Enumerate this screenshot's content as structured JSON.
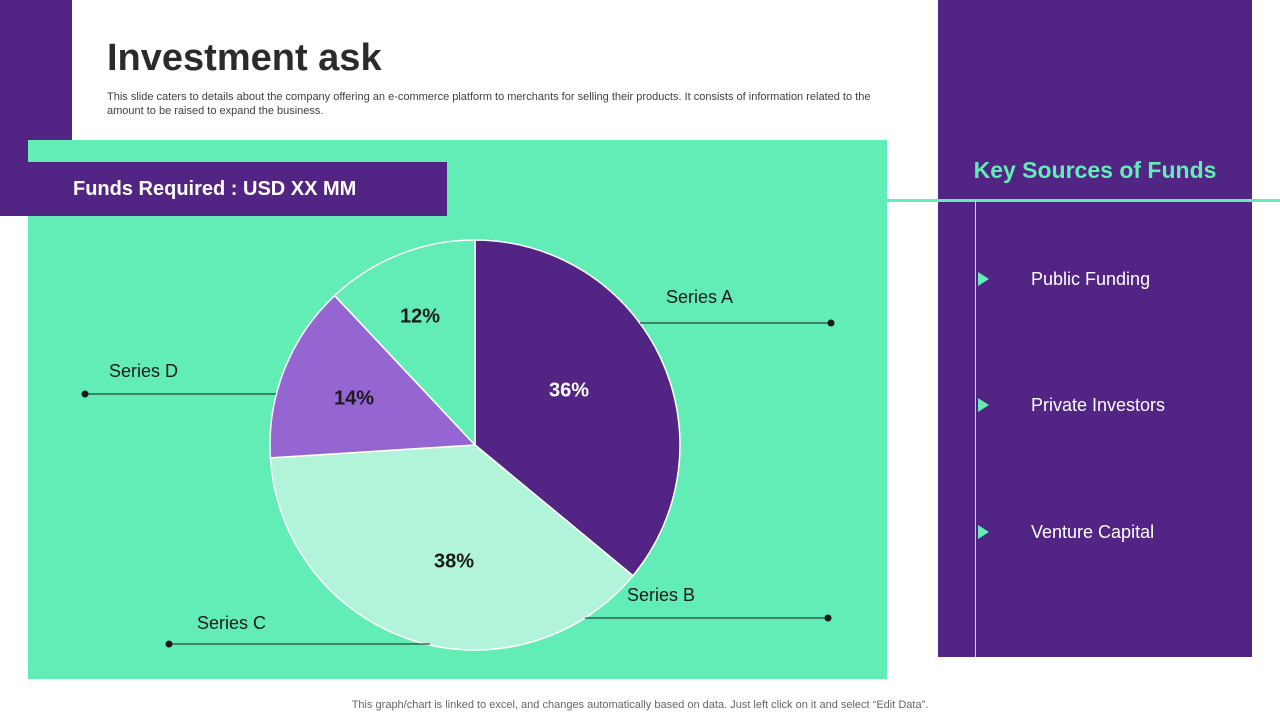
{
  "page": {
    "title": "Investment ask",
    "description": "This slide caters to details about the company offering an e-commerce platform to merchants for selling their products. It consists of information related to the amount to be raised to expand the business.",
    "footer_note": "This graph/chart is linked to excel, and changes automatically based on data. Just left click on it and select “Edit Data”."
  },
  "funds_banner": {
    "label": "Funds Required : USD XX MM"
  },
  "key_sources": {
    "title": "Key Sources of Funds",
    "items": [
      {
        "label": "Public Funding",
        "icon": "triangle-arrow-icon"
      },
      {
        "label": "Private Investors",
        "icon": "triangle-arrow-icon"
      },
      {
        "label": "Venture Capital",
        "icon": "triangle-arrow-icon"
      }
    ]
  },
  "colors": {
    "purple": "#522584",
    "teal": "#62ecb6",
    "light_purple": "#9566d2",
    "pale_green": "#b2f4d9"
  },
  "chart_data": {
    "type": "pie",
    "title": "",
    "slices": [
      {
        "name": "Series A",
        "value": 36,
        "label": "36%",
        "color": "#522584"
      },
      {
        "name": "Series B",
        "value": 38,
        "label": "38%",
        "color": "#b2f4d9"
      },
      {
        "name": "Series D",
        "value": 14,
        "label": "14%",
        "color": "#9566d2"
      },
      {
        "name": "Series C",
        "value": 12,
        "label": "12%",
        "color": "#62ecb6"
      }
    ],
    "legend": "callout labels around pie"
  }
}
